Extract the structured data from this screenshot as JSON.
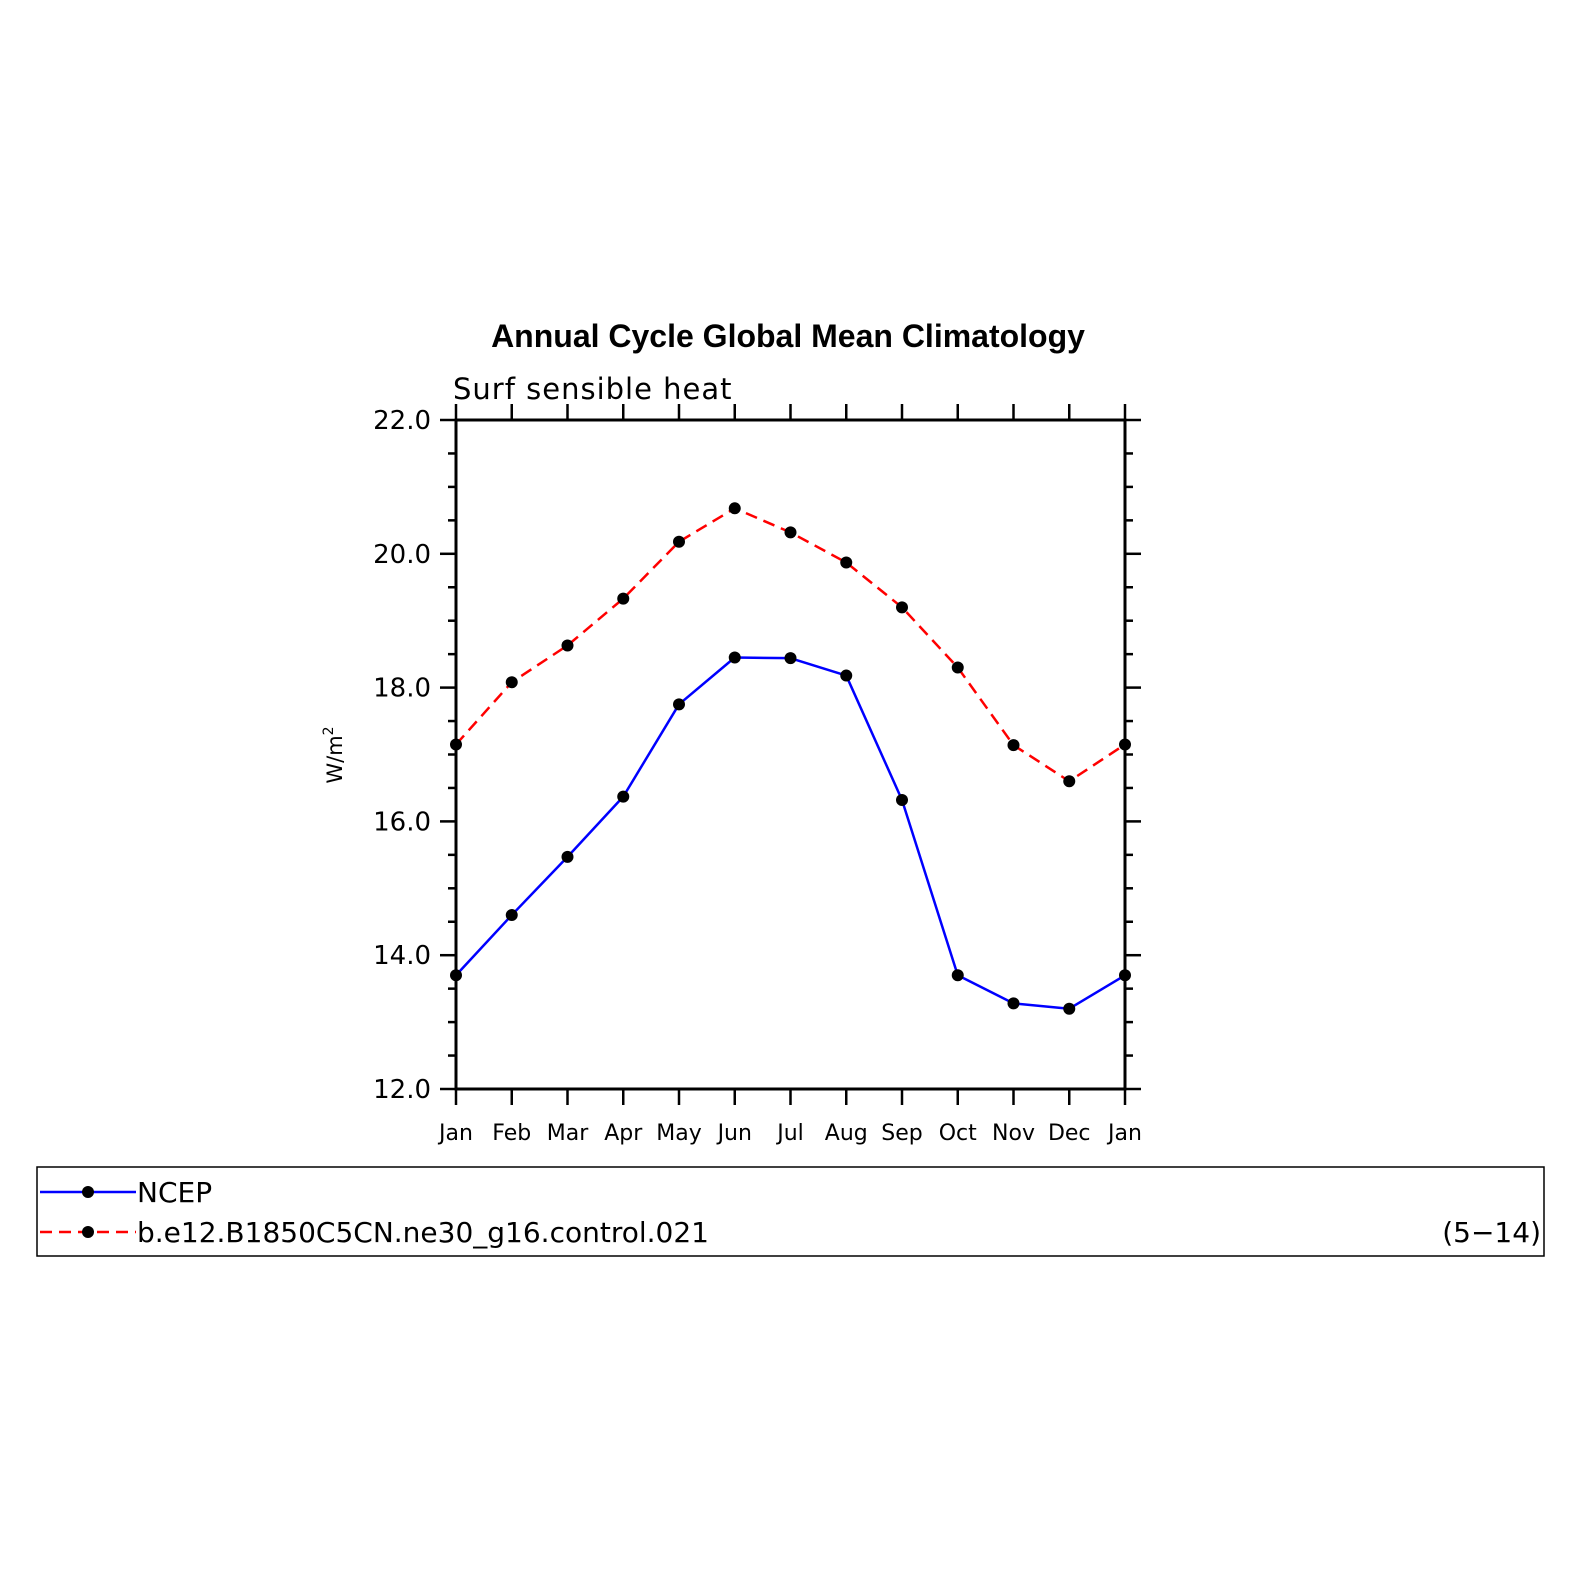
{
  "chart_data": {
    "type": "line",
    "title": "Annual Cycle Global Mean Climatology",
    "subtitle": "Surf sensible heat",
    "ylabel": "W/m",
    "ylabel_superscript": "2",
    "ylim": [
      12.0,
      22.0
    ],
    "yticks": [
      "12.0",
      "14.0",
      "16.0",
      "18.0",
      "20.0",
      "22.0"
    ],
    "categories": [
      "Jan",
      "Feb",
      "Mar",
      "Apr",
      "May",
      "Jun",
      "Jul",
      "Aug",
      "Sep",
      "Oct",
      "Nov",
      "Dec",
      "Jan"
    ],
    "series": [
      {
        "name": "NCEP",
        "color": "#0000ff",
        "dashed": false,
        "values": [
          13.7,
          14.6,
          15.47,
          16.37,
          17.75,
          18.45,
          18.44,
          18.18,
          16.32,
          13.7,
          13.28,
          13.2,
          13.7
        ]
      },
      {
        "name": "b.e12.B1850C5CN.ne30_g16.control.021",
        "color": "#ff0000",
        "dashed": true,
        "values": [
          17.15,
          18.08,
          18.63,
          19.33,
          20.18,
          20.68,
          20.32,
          19.87,
          19.2,
          18.3,
          17.14,
          16.6,
          17.15
        ]
      }
    ],
    "marker_color": "#000000",
    "grid": false,
    "legend_position": "bottom",
    "legend_note": "(5−14)"
  }
}
